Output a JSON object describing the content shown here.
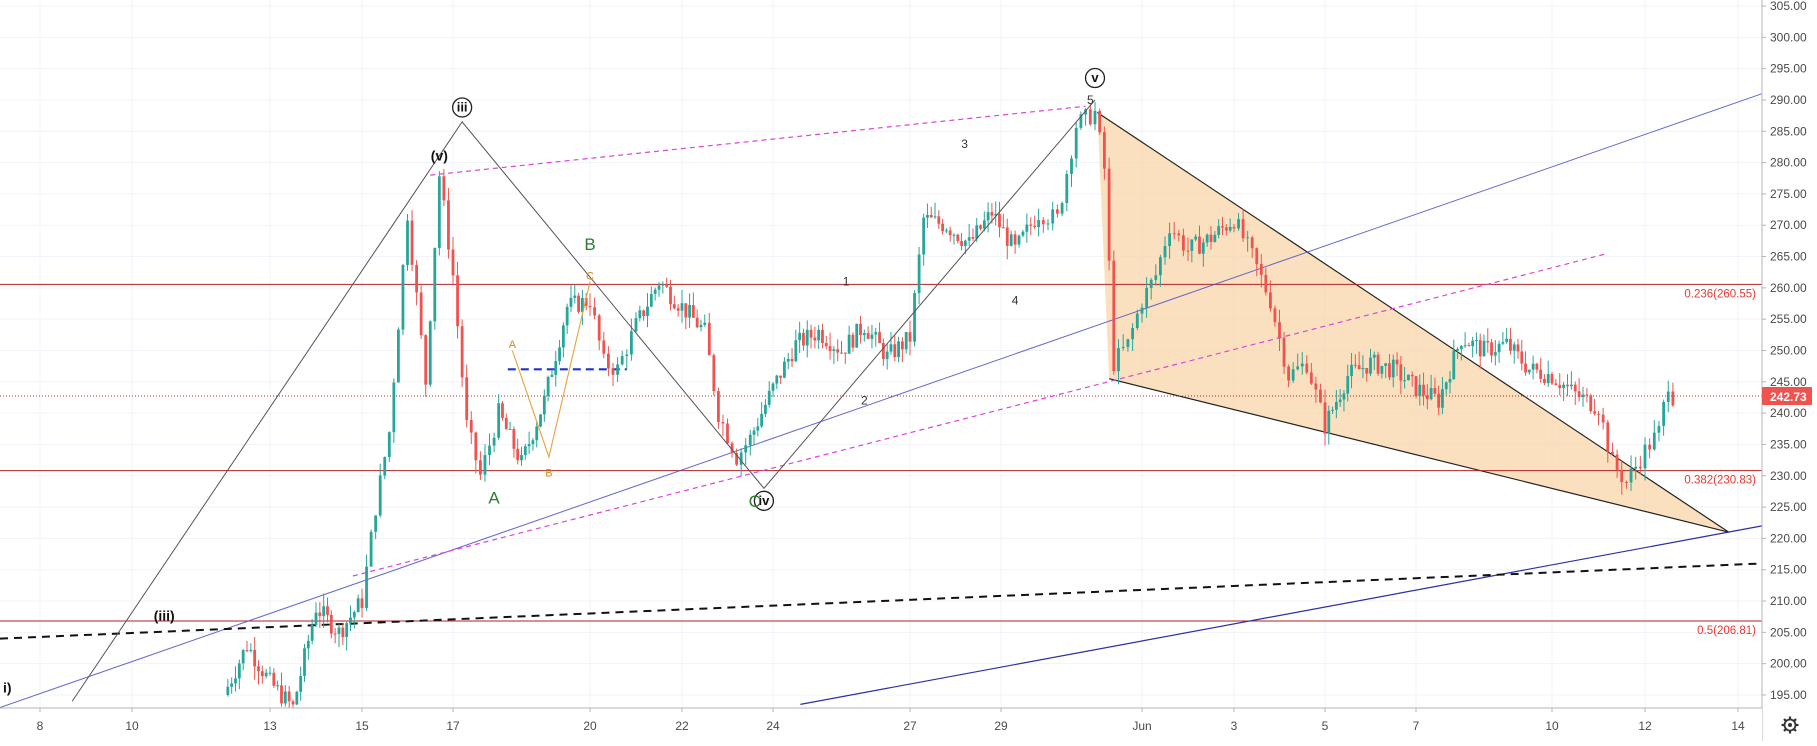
{
  "chart_data": {
    "type": "candlestick",
    "title": "",
    "xlabel": "",
    "ylabel": "",
    "ylim": [
      190,
      306
    ],
    "grid": true,
    "x_ticks": [
      "8",
      "10",
      "13",
      "15",
      "17",
      "20",
      "22",
      "24",
      "27",
      "29",
      "Jun",
      "3",
      "5",
      "7",
      "10",
      "12",
      "14"
    ],
    "y_ticks": [
      "195.00",
      "200.00",
      "205.00",
      "210.00",
      "215.00",
      "220.00",
      "225.00",
      "230.00",
      "235.00",
      "240.00",
      "245.00",
      "250.00",
      "255.00",
      "260.00",
      "265.00",
      "270.00",
      "275.00",
      "280.00",
      "285.00",
      "290.00",
      "295.00",
      "300.00",
      "305.00"
    ],
    "current_price": "242.73",
    "price_path": [
      [
        "12",
        195
      ],
      [
        "12.5",
        203
      ],
      [
        "13",
        197
      ],
      [
        "13.5",
        193
      ],
      [
        "14",
        209
      ],
      [
        "14.5",
        205
      ],
      [
        "15",
        210
      ],
      [
        "15.3",
        225
      ],
      [
        "15.6",
        237
      ],
      [
        "16",
        272
      ],
      [
        "16.4",
        245
      ],
      [
        "16.7",
        278
      ],
      [
        "17",
        262
      ],
      [
        "17.3",
        238
      ],
      [
        "17.6",
        230
      ],
      [
        "18",
        240
      ],
      [
        "18.5",
        232
      ],
      [
        "19",
        242
      ],
      [
        "19.5",
        257
      ],
      [
        "20",
        258
      ],
      [
        "20.3",
        248
      ],
      [
        "20.6",
        247
      ],
      [
        "21",
        254
      ],
      [
        "21.5",
        261
      ],
      [
        "22",
        257
      ],
      [
        "22.5",
        253
      ],
      [
        "22.8",
        240
      ],
      [
        "23.2",
        233
      ],
      [
        "23.5",
        236
      ],
      [
        "24",
        244
      ],
      [
        "24.5",
        251
      ],
      [
        "25",
        253
      ],
      [
        "25.5",
        250
      ],
      [
        "26",
        254
      ],
      [
        "26.5",
        249
      ],
      [
        "27",
        252
      ],
      [
        "27.3",
        271
      ],
      [
        "27.8",
        270
      ],
      [
        "28.3",
        267
      ],
      [
        "28.8",
        272
      ],
      [
        "29.3",
        266
      ],
      [
        "29.8",
        272
      ],
      [
        "30.2",
        271
      ],
      [
        "30.6",
        286
      ],
      [
        "31",
        288
      ],
      [
        "31.2",
        279
      ],
      [
        "31.4",
        248
      ],
      [
        "31.7",
        251
      ],
      [
        "32",
        258
      ],
      [
        "32.3",
        262
      ],
      [
        "32.6",
        270
      ],
      [
        "33",
        266
      ],
      [
        "33.5",
        268
      ],
      [
        "34",
        271
      ],
      [
        "34.4",
        265
      ],
      [
        "34.8",
        258
      ],
      [
        "35.2",
        246
      ],
      [
        "35.6",
        248
      ],
      [
        "36",
        238
      ],
      [
        "36.5",
        246
      ],
      [
        "37",
        248
      ],
      [
        "37.5",
        247
      ],
      [
        "38",
        244
      ],
      [
        "38.5",
        242
      ],
      [
        "39",
        252
      ],
      [
        "39.5",
        250
      ],
      [
        "40",
        251
      ],
      [
        "40.5",
        247
      ],
      [
        "41",
        246
      ],
      [
        "41.5",
        243
      ],
      [
        "42",
        241
      ],
      [
        "42.3",
        232
      ],
      [
        "42.6",
        229
      ],
      [
        "43",
        234
      ],
      [
        "43.3",
        237
      ],
      [
        "43.5",
        245
      ],
      [
        "43.6",
        242.73
      ]
    ],
    "horizontal_levels": [
      {
        "label": "0.236(260.55)",
        "value": 260.55
      },
      {
        "label": "0.382(230.83)",
        "value": 230.83
      },
      {
        "label": "0.5(206.81)",
        "value": 206.81
      }
    ],
    "annotations": [
      {
        "text": "iii",
        "style": "circled"
      },
      {
        "text": "(v)",
        "style": "plain"
      },
      {
        "text": "B",
        "style": "letter"
      },
      {
        "text": "A",
        "style": "letter"
      },
      {
        "text": "A",
        "style": "small"
      },
      {
        "text": "B",
        "style": "small"
      },
      {
        "text": "C",
        "style": "small"
      },
      {
        "text": "iv",
        "style": "circled"
      },
      {
        "text": "C",
        "style": "letter"
      },
      {
        "text": "v",
        "style": "circled"
      },
      {
        "text": "5",
        "style": "small"
      },
      {
        "text": "3",
        "style": "small"
      },
      {
        "text": "1",
        "style": "small"
      },
      {
        "text": "2",
        "style": "small"
      },
      {
        "text": "4",
        "style": "small"
      },
      {
        "text": "(iii)",
        "style": "plain"
      },
      {
        "text": "i)",
        "style": "plain"
      }
    ]
  },
  "colors": {
    "bull": "#26a69a",
    "bear": "#ef5350",
    "fib_line": "#b22222",
    "fib_text": "#e53935",
    "wedge_fill": "#f8d6a8",
    "trend_blue": "#4b4ec7",
    "trend_magenta": "#d946d9",
    "wave_line": "#555555",
    "price_tag_bg": "#ef5350"
  },
  "icons": {
    "settings": "gear-icon"
  }
}
